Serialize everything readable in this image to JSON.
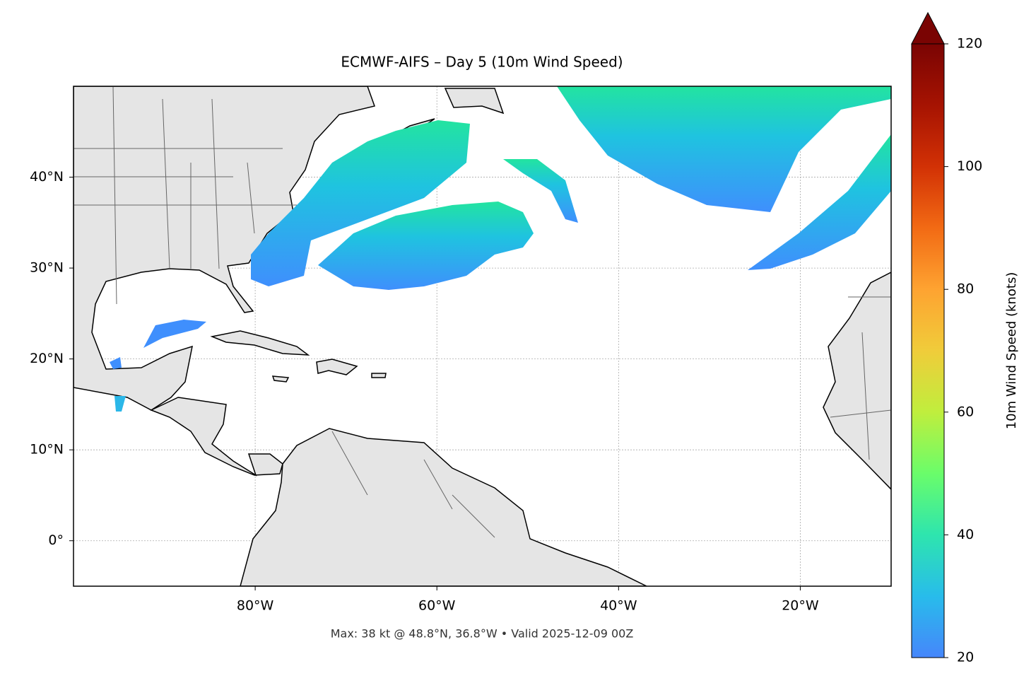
{
  "map": {
    "title": "ECMWF-AIFS – Day 5 (10m Wind Speed)",
    "lonlim": [
      -100,
      -10
    ],
    "latlim": [
      -5,
      50
    ],
    "lonticks": [
      {
        "value": -80,
        "label": "80°W"
      },
      {
        "value": -60,
        "label": "60°W"
      },
      {
        "value": -40,
        "label": "40°W"
      },
      {
        "value": -20,
        "label": "20°W"
      }
    ],
    "latticks": [
      {
        "value": 0,
        "label": "0°"
      },
      {
        "value": 10,
        "label": "10°N"
      },
      {
        "value": 20,
        "label": "20°N"
      },
      {
        "value": 30,
        "label": "30°N"
      },
      {
        "value": 40,
        "label": "40°N"
      }
    ],
    "footer": "Max: 38 kt @ 48.8°N, 36.8°W • Valid 2025-12-09 00Z",
    "colorbar": {
      "label": "10m Wind Speed (knots)",
      "lim": [
        20,
        120
      ],
      "ticks": [
        20,
        40,
        60,
        80,
        100,
        120
      ]
    }
  }
}
